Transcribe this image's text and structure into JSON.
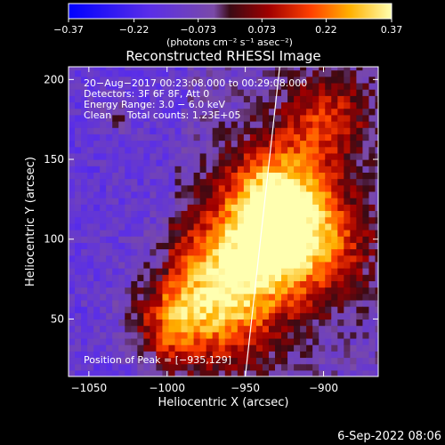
{
  "chart_data": {
    "type": "heatmap",
    "title": "Reconstructed RHESSI Image",
    "xlabel": "Heliocentric X (arcsec)",
    "ylabel": "Heliocentric Y (arcsec)",
    "xlim": [
      -1063,
      -865
    ],
    "ylim": [
      14,
      208
    ],
    "x_ticks": [
      -1050,
      -1000,
      -950,
      -900
    ],
    "x_tick_labels": [
      "−1050",
      "−1000",
      "−950",
      "−900"
    ],
    "y_ticks": [
      50,
      100,
      150,
      200
    ],
    "y_tick_labels": [
      "50",
      "100",
      "150",
      "200"
    ],
    "colorbar": {
      "min": -0.37,
      "max": 0.37,
      "ticks": [
        -0.37,
        -0.22,
        -0.073,
        0.073,
        0.22,
        0.37
      ],
      "tick_labels": [
        "−0.37",
        "−0.22",
        "−0.073",
        "0.073",
        "0.22",
        "0.37"
      ],
      "unit_label": "(photons cm⁻² s⁻¹ asec⁻²)"
    },
    "annotations": [
      "20−Aug−2017 00:23:08.000 to 00:29:08.000",
      "Detectors: 3F 6F 8F, Att 0",
      "Energy Range: 3.0 − 6.0 keV",
      "Clean     Total counts: 1.23E+05"
    ],
    "peak_label": "Position of Peak = [−935,129]",
    "peak": [
      -935,
      129
    ],
    "limb_line": [
      [
        -950,
        14
      ],
      [
        -928,
        208
      ]
    ],
    "sources": [
      {
        "x": -970,
        "y": 60,
        "sigma": 28,
        "amp": 0.36
      },
      {
        "x": -930,
        "y": 130,
        "sigma": 22,
        "amp": 0.34
      },
      {
        "x": -905,
        "y": 95,
        "sigma": 24,
        "amp": 0.26
      },
      {
        "x": -945,
        "y": 95,
        "sigma": 26,
        "amp": 0.3
      },
      {
        "x": -900,
        "y": 175,
        "sigma": 20,
        "amp": 0.22
      },
      {
        "x": -1005,
        "y": 45,
        "sigma": 16,
        "amp": 0.18
      },
      {
        "x": -1035,
        "y": 175,
        "sigma": 8,
        "amp": 0.1
      }
    ],
    "grid": false
  },
  "footer": {
    "timestamp": "6-Sep-2022 08:06"
  }
}
